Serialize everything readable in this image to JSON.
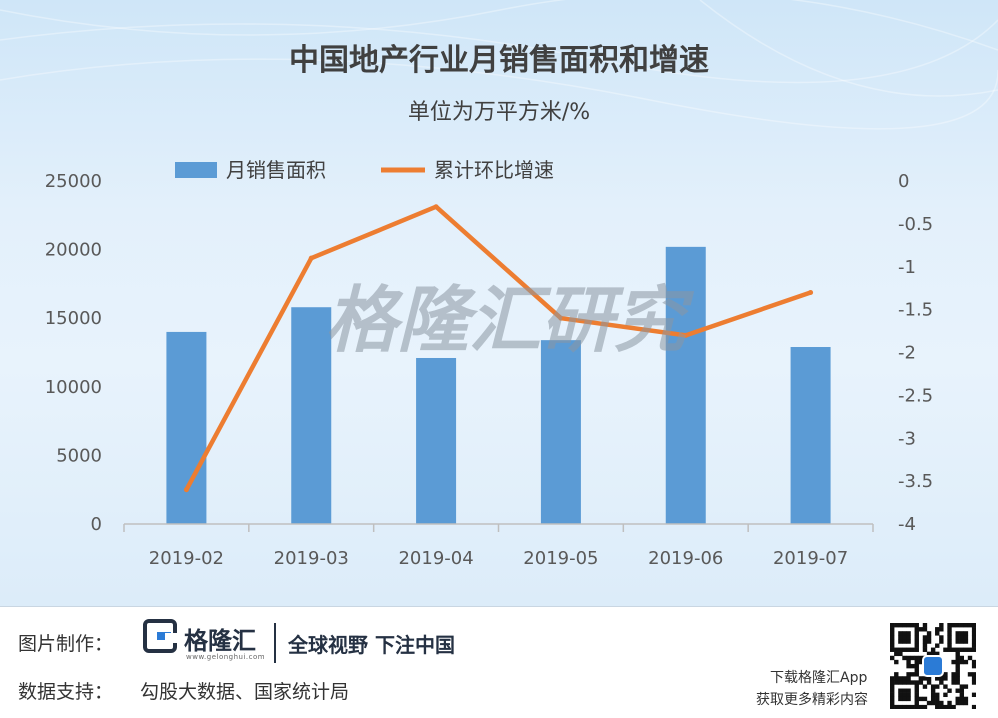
{
  "chart_data": {
    "type": "bar+line",
    "title": "中国地产行业月销售面积和增速",
    "subtitle": "单位为万平方米/%",
    "categories": [
      "2019-02",
      "2019-03",
      "2019-04",
      "2019-05",
      "2019-06",
      "2019-07"
    ],
    "series": [
      {
        "name": "月销售面积",
        "type": "bar",
        "axis": "left",
        "color": "#5b9bd5",
        "values": [
          14000,
          15800,
          12100,
          13400,
          20200,
          12900
        ]
      },
      {
        "name": "累计环比增速",
        "type": "line",
        "axis": "right",
        "color": "#ed7d31",
        "values": [
          -3.6,
          -0.9,
          -0.3,
          -1.6,
          -1.8,
          -1.3
        ]
      }
    ],
    "left_axis": {
      "ylim": [
        0,
        25000
      ],
      "ticks": [
        "0",
        "5000",
        "10000",
        "15000",
        "20000",
        "25000"
      ]
    },
    "right_axis": {
      "ylim": [
        -4,
        0
      ],
      "ticks": [
        "0",
        "-0.5",
        "-1",
        "-1.5",
        "-2",
        "-2.5",
        "-3",
        "-3.5",
        "-4"
      ]
    },
    "legend_position": "top",
    "grid": false,
    "watermark": "格隆汇研究"
  },
  "footer": {
    "made_by_label": "图片制作：",
    "logo_name": "格隆汇",
    "logo_url": "www.gelonghui.com",
    "slogan": "全球视野 下注中国",
    "data_support_label": "数据支持：",
    "data_source": "勾股大数据、国家统计局",
    "app_line1": "下载格隆汇App",
    "app_line2": "获取更多精彩内容"
  },
  "colors": {
    "bar": "#5b9bd5",
    "line": "#ed7d31",
    "brand_dark": "#253143",
    "brand_blue": "#2b7bd6"
  }
}
